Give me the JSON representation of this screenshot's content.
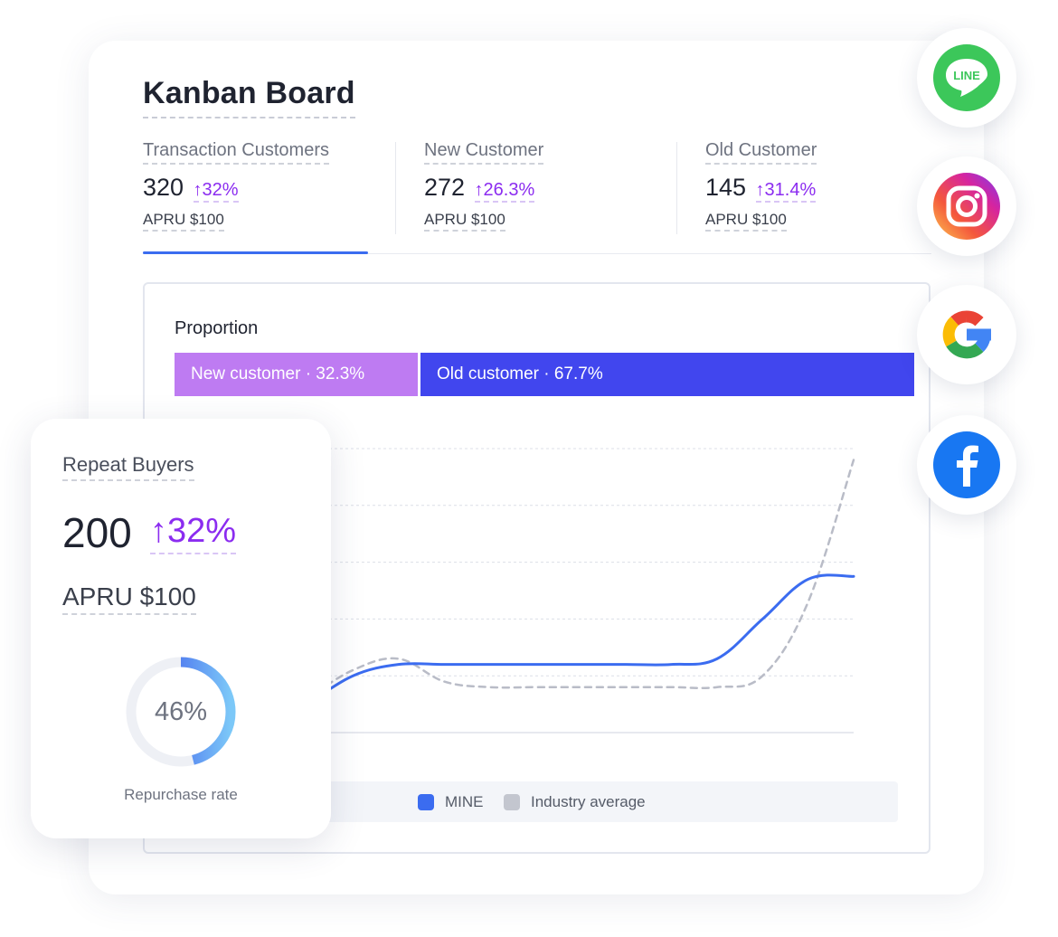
{
  "board": {
    "title": "Kanban Board"
  },
  "stats": [
    {
      "label": "Transaction Customers",
      "value": "320",
      "delta": "32%",
      "apru": "APRU $100",
      "active": true
    },
    {
      "label": "New Customer",
      "value": "272",
      "delta": "26.3%",
      "apru": "APRU $100",
      "active": false
    },
    {
      "label": "Old Customer",
      "value": "145",
      "delta": "31.4%",
      "apru": "APRU $100",
      "active": false
    }
  ],
  "delta_arrow": "↑",
  "proportion": {
    "title": "Proportion",
    "new_label": "New customer · 32.3%",
    "old_label": "Old customer · 67.7%",
    "new_share": 32.3,
    "old_share": 67.7,
    "new_color": "#be7bf2",
    "old_color": "#4146ee"
  },
  "chart_data": {
    "type": "line",
    "xlabel": "",
    "ylabel": "",
    "ylim": [
      0,
      5
    ],
    "grid": true,
    "legend_position": "bottom",
    "x": [
      0,
      1,
      2,
      3,
      4,
      5,
      6,
      7,
      8,
      9,
      10,
      11,
      12
    ],
    "series": [
      {
        "name": "MINE",
        "color": "#3b6cf0",
        "style": "solid",
        "values": [
          0.5,
          1.0,
          1.2,
          1.2,
          1.2,
          1.2,
          1.2,
          1.2,
          1.2,
          1.3,
          2.0,
          2.7,
          2.75
        ]
      },
      {
        "name": "Industry average",
        "color": "#b9bcc7",
        "style": "dashed",
        "values": [
          0.6,
          1.1,
          1.3,
          0.9,
          0.8,
          0.8,
          0.8,
          0.8,
          0.8,
          0.8,
          1.0,
          2.3,
          4.8
        ]
      }
    ]
  },
  "legend": {
    "mine_label": "MINE",
    "industry_label": "Industry average",
    "mine_color": "#3b6cf0",
    "industry_color": "#c3c6cf"
  },
  "repeat": {
    "title": "Repeat Buyers",
    "value": "200",
    "delta": "32%",
    "apru": "APRU $100",
    "rate_label": "46%",
    "rate": 0.46,
    "caption": "Repurchase rate"
  },
  "social": {
    "line_text": "LINE",
    "icons": [
      "line-icon",
      "instagram-icon",
      "google-icon",
      "facebook-icon"
    ]
  }
}
